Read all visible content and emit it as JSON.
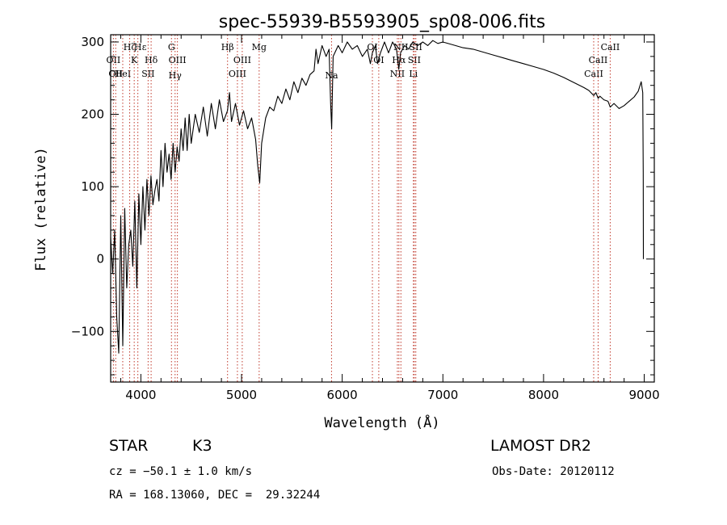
{
  "chart_data": {
    "type": "line",
    "title": "spec-55939-B5593905_sp08-006.fits",
    "xlabel": "Wavelength (Å)",
    "ylabel": "Flux (relative)",
    "xlim": [
      3700,
      9100
    ],
    "ylim": [
      -170,
      310
    ],
    "xticks": [
      {
        "value": 4000,
        "label": "4000"
      },
      {
        "value": 5000,
        "label": "5000"
      },
      {
        "value": 6000,
        "label": "6000"
      },
      {
        "value": 7000,
        "label": "7000"
      },
      {
        "value": 8000,
        "label": "8000"
      },
      {
        "value": 9000,
        "label": "9000"
      }
    ],
    "yticks": [
      {
        "value": -100,
        "label": "−100"
      },
      {
        "value": 0,
        "label": "0"
      },
      {
        "value": 100,
        "label": "100"
      },
      {
        "value": 200,
        "label": "200"
      },
      {
        "value": 300,
        "label": "300"
      }
    ],
    "series": [
      {
        "color": "#000000",
        "points": [
          [
            3700,
            30
          ],
          [
            3720,
            -20
          ],
          [
            3740,
            40
          ],
          [
            3760,
            -80
          ],
          [
            3780,
            -130
          ],
          [
            3800,
            60
          ],
          [
            3820,
            -120
          ],
          [
            3840,
            70
          ],
          [
            3860,
            -40
          ],
          [
            3880,
            20
          ],
          [
            3900,
            40
          ],
          [
            3920,
            -10
          ],
          [
            3940,
            80
          ],
          [
            3960,
            -40
          ],
          [
            3980,
            90
          ],
          [
            4000,
            20
          ],
          [
            4020,
            100
          ],
          [
            4040,
            40
          ],
          [
            4060,
            110
          ],
          [
            4080,
            60
          ],
          [
            4100,
            115
          ],
          [
            4120,
            75
          ],
          [
            4140,
            95
          ],
          [
            4160,
            110
          ],
          [
            4180,
            80
          ],
          [
            4200,
            150
          ],
          [
            4220,
            100
          ],
          [
            4240,
            160
          ],
          [
            4260,
            120
          ],
          [
            4280,
            145
          ],
          [
            4300,
            110
          ],
          [
            4320,
            160
          ],
          [
            4340,
            120
          ],
          [
            4360,
            155
          ],
          [
            4380,
            135
          ],
          [
            4400,
            180
          ],
          [
            4420,
            150
          ],
          [
            4440,
            195
          ],
          [
            4460,
            150
          ],
          [
            4480,
            200
          ],
          [
            4500,
            160
          ],
          [
            4540,
            200
          ],
          [
            4580,
            175
          ],
          [
            4620,
            210
          ],
          [
            4660,
            170
          ],
          [
            4700,
            215
          ],
          [
            4740,
            180
          ],
          [
            4780,
            220
          ],
          [
            4820,
            190
          ],
          [
            4860,
            205
          ],
          [
            4880,
            230
          ],
          [
            4900,
            190
          ],
          [
            4940,
            215
          ],
          [
            4980,
            185
          ],
          [
            5020,
            205
          ],
          [
            5060,
            180
          ],
          [
            5100,
            195
          ],
          [
            5140,
            165
          ],
          [
            5160,
            130
          ],
          [
            5180,
            105
          ],
          [
            5200,
            160
          ],
          [
            5240,
            195
          ],
          [
            5280,
            210
          ],
          [
            5320,
            205
          ],
          [
            5360,
            225
          ],
          [
            5400,
            215
          ],
          [
            5440,
            235
          ],
          [
            5480,
            220
          ],
          [
            5520,
            245
          ],
          [
            5560,
            230
          ],
          [
            5600,
            250
          ],
          [
            5640,
            240
          ],
          [
            5680,
            255
          ],
          [
            5720,
            260
          ],
          [
            5740,
            290
          ],
          [
            5760,
            270
          ],
          [
            5800,
            295
          ],
          [
            5840,
            280
          ],
          [
            5870,
            290
          ],
          [
            5885,
            215
          ],
          [
            5895,
            180
          ],
          [
            5910,
            280
          ],
          [
            5960,
            295
          ],
          [
            6000,
            285
          ],
          [
            6050,
            300
          ],
          [
            6100,
            290
          ],
          [
            6150,
            295
          ],
          [
            6200,
            280
          ],
          [
            6250,
            290
          ],
          [
            6280,
            270
          ],
          [
            6300,
            285
          ],
          [
            6330,
            295
          ],
          [
            6350,
            270
          ],
          [
            6380,
            285
          ],
          [
            6420,
            300
          ],
          [
            6460,
            285
          ],
          [
            6500,
            300
          ],
          [
            6540,
            290
          ],
          [
            6562,
            262
          ],
          [
            6580,
            285
          ],
          [
            6620,
            295
          ],
          [
            6660,
            290
          ],
          [
            6700,
            300
          ],
          [
            6750,
            295
          ],
          [
            6800,
            300
          ],
          [
            6850,
            295
          ],
          [
            6900,
            302
          ],
          [
            6950,
            298
          ],
          [
            7000,
            300
          ],
          [
            7100,
            296
          ],
          [
            7200,
            292
          ],
          [
            7300,
            290
          ],
          [
            7400,
            286
          ],
          [
            7500,
            282
          ],
          [
            7600,
            278
          ],
          [
            7700,
            274
          ],
          [
            7800,
            270
          ],
          [
            7900,
            266
          ],
          [
            8000,
            262
          ],
          [
            8100,
            257
          ],
          [
            8200,
            251
          ],
          [
            8300,
            244
          ],
          [
            8400,
            237
          ],
          [
            8450,
            233
          ],
          [
            8498,
            226
          ],
          [
            8520,
            230
          ],
          [
            8542,
            222
          ],
          [
            8560,
            225
          ],
          [
            8600,
            220
          ],
          [
            8640,
            218
          ],
          [
            8662,
            210
          ],
          [
            8700,
            215
          ],
          [
            8750,
            208
          ],
          [
            8800,
            212
          ],
          [
            8850,
            218
          ],
          [
            8900,
            224
          ],
          [
            8940,
            232
          ],
          [
            8970,
            245
          ],
          [
            8985,
            230
          ],
          [
            8990,
            120
          ],
          [
            8992,
            0
          ]
        ]
      }
    ],
    "lines": [
      {
        "wave": 3727,
        "labels": [
          "OII"
        ],
        "rows": [
          2
        ]
      },
      {
        "wave": 3750,
        "labels": [
          "OII"
        ],
        "rows": [
          3
        ]
      },
      {
        "wave": 3820,
        "labels": [
          "HeI"
        ],
        "rows": [
          3
        ]
      },
      {
        "wave": 3889,
        "labels": [
          "Hζ"
        ],
        "rows": [
          1
        ]
      },
      {
        "wave": 3934,
        "labels": [
          "K"
        ],
        "rows": [
          2
        ]
      },
      {
        "wave": 3970,
        "labels": [
          "H",
          "ε"
        ],
        "rows": [
          1,
          1
        ]
      },
      {
        "wave": 4072,
        "labels": [
          "SII"
        ],
        "rows": [
          3
        ]
      },
      {
        "wave": 4102,
        "labels": [
          "Hδ"
        ],
        "rows": [
          2
        ]
      },
      {
        "wave": 4304,
        "labels": [
          "G"
        ],
        "rows": [
          1
        ]
      },
      {
        "wave": 4340,
        "labels": [
          "Hγ"
        ],
        "rows": [
          4
        ]
      },
      {
        "wave": 4363,
        "labels": [
          "OIII"
        ],
        "rows": [
          2
        ]
      },
      {
        "wave": 4861,
        "labels": [
          "Hβ"
        ],
        "rows": [
          1
        ]
      },
      {
        "wave": 4959,
        "labels": [
          "OIII"
        ],
        "rows": [
          3
        ]
      },
      {
        "wave": 5007,
        "labels": [
          "OIII"
        ],
        "rows": [
          2
        ]
      },
      {
        "wave": 5175,
        "labels": [
          "Mg"
        ],
        "rows": [
          1
        ]
      },
      {
        "wave": 5894,
        "labels": [
          "Na"
        ],
        "rows": [
          4
        ]
      },
      {
        "wave": 6300,
        "labels": [
          "OI"
        ],
        "rows": [
          1
        ]
      },
      {
        "wave": 6363,
        "labels": [
          "OI"
        ],
        "rows": [
          2
        ]
      },
      {
        "wave": 6548,
        "labels": [
          "NII"
        ],
        "rows": [
          3
        ]
      },
      {
        "wave": 6563,
        "labels": [
          "Hα"
        ],
        "rows": [
          2
        ]
      },
      {
        "wave": 6583,
        "labels": [
          "NII"
        ],
        "rows": [
          1
        ]
      },
      {
        "wave": 6707,
        "labels": [
          "Li"
        ],
        "rows": [
          3
        ]
      },
      {
        "wave": 6716,
        "labels": [
          "SII"
        ],
        "rows": [
          2
        ]
      },
      {
        "wave": 6731,
        "labels": [
          "SII"
        ],
        "rows": [
          1
        ]
      },
      {
        "wave": 8498,
        "labels": [
          "CaII"
        ],
        "rows": [
          3
        ]
      },
      {
        "wave": 8542,
        "labels": [
          "CaII"
        ],
        "rows": [
          2
        ]
      },
      {
        "wave": 8662,
        "labels": [
          "CaII"
        ],
        "rows": [
          1
        ]
      }
    ],
    "line_color": "#c0392b",
    "grid": false,
    "legend": "none"
  },
  "info": {
    "object_class": "STAR",
    "subclass": "K3",
    "survey": "LAMOST DR2",
    "redshift": "cz = −50.1 ± 1.0 km/s",
    "obs_date": "Obs-Date: 20120112",
    "coords": "RA = 168.13060, DEC =  29.32244"
  }
}
